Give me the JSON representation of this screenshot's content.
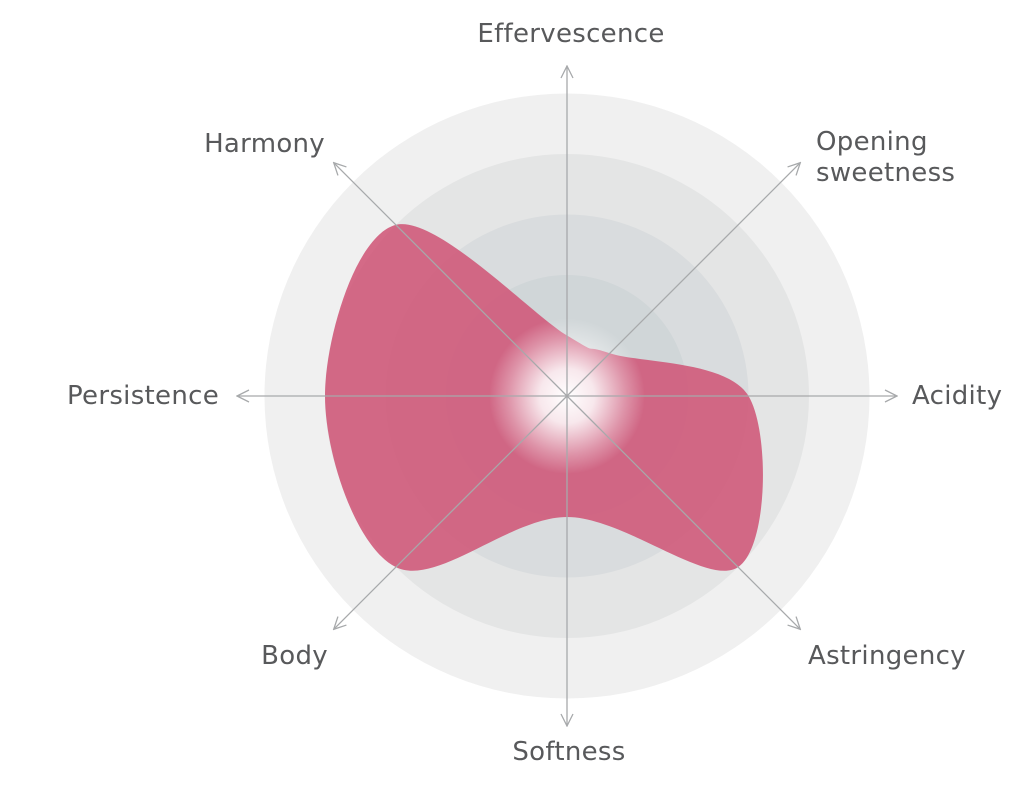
{
  "chart_data": {
    "type": "radar",
    "axes": [
      {
        "label_lines": [
          "Effervescence"
        ],
        "value": 0.25
      },
      {
        "label_lines": [
          "Opening",
          "sweetness"
        ],
        "value": 0.25
      },
      {
        "label_lines": [
          "Acidity"
        ],
        "value": 0.75
      },
      {
        "label_lines": [
          "Astringency"
        ],
        "value": 1.0
      },
      {
        "label_lines": [
          "Softness"
        ],
        "value": 0.5
      },
      {
        "label_lines": [
          "Body"
        ],
        "value": 1.0
      },
      {
        "label_lines": [
          "Persistence"
        ],
        "value": 1.0
      },
      {
        "label_lines": [
          "Harmony"
        ],
        "value": 1.0
      }
    ],
    "rlim": [
      0,
      1.25
    ],
    "rings": [
      1.25,
      1.0,
      0.75,
      0.5
    ],
    "smooth": true,
    "colors": {
      "fill": "#cf5677",
      "ring_outer": "#f0f0f0",
      "ring_2": "#e4e5e5",
      "ring_3": "#d9dcde",
      "ring_inner": "#d0d6d8",
      "axis_line": "#a7a9ab",
      "label": "#58595b"
    }
  }
}
